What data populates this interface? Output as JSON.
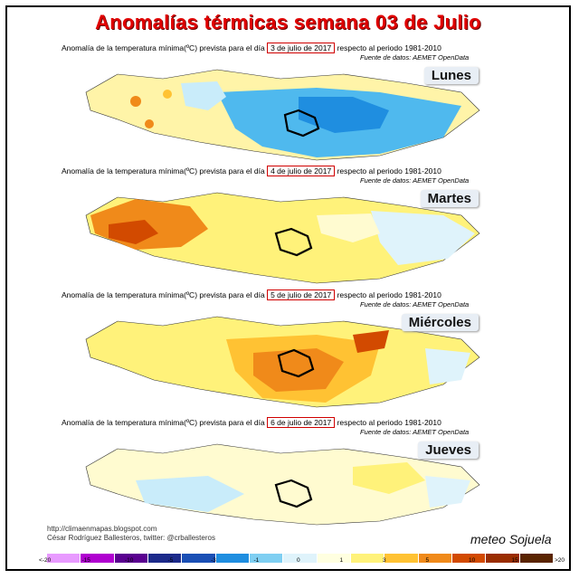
{
  "title": "Anomalías térmicas semana 03 de Julio",
  "panels": [
    {
      "caption_pre": "Anomalía de la temperatura mínima(ºC) prevista para el día",
      "date": "3 de julio de 2017",
      "caption_post": "respecto al periodo 1981-2010",
      "source": "Fuente de datos: AEMET OpenData",
      "day": "Lunes"
    },
    {
      "caption_pre": "Anomalía de la temperatura mínima(ºC) prevista para el día",
      "date": "4 de julio de 2017",
      "caption_post": "respecto al periodo 1981-2010",
      "source": "Fuente de datos: AEMET OpenData",
      "day": "Martes"
    },
    {
      "caption_pre": "Anomalía de la temperatura mínima(ºC) prevista para el día",
      "date": "5 de julio de 2017",
      "caption_post": "respecto al periodo 1981-2010",
      "source": "Fuente de datos: AEMET OpenData",
      "day": "Miércoles"
    },
    {
      "caption_pre": "Anomalía de la temperatura mínima(ºC) prevista para el día",
      "date": "6 de julio de 2017",
      "caption_post": "respecto al periodo 1981-2010",
      "source": "Fuente de datos: AEMET OpenData",
      "day": "Jueves"
    }
  ],
  "footer": {
    "line1": "http://climaenmapas.blogspot.com",
    "line2": "César Rodríguez Ballesteros, twitter: @crballesteros"
  },
  "logo": {
    "part1": "meteo",
    "part2": "Sojuela"
  },
  "colorbar": {
    "ticks": [
      "<-20",
      "-15",
      "-10",
      "-5",
      "-3",
      "-1",
      "0",
      "1",
      "3",
      "5",
      "10",
      "15",
      ">20"
    ],
    "colors": [
      "#e89aff",
      "#b000d0",
      "#5a0090",
      "#1c2a8a",
      "#1a4fb5",
      "#1f8ee0",
      "#7fcff2",
      "#dff3fb",
      "#ffffe0",
      "#fff27a",
      "#ffc233",
      "#f08a1a",
      "#d24a00",
      "#9a2d00",
      "#5a2400"
    ]
  }
}
